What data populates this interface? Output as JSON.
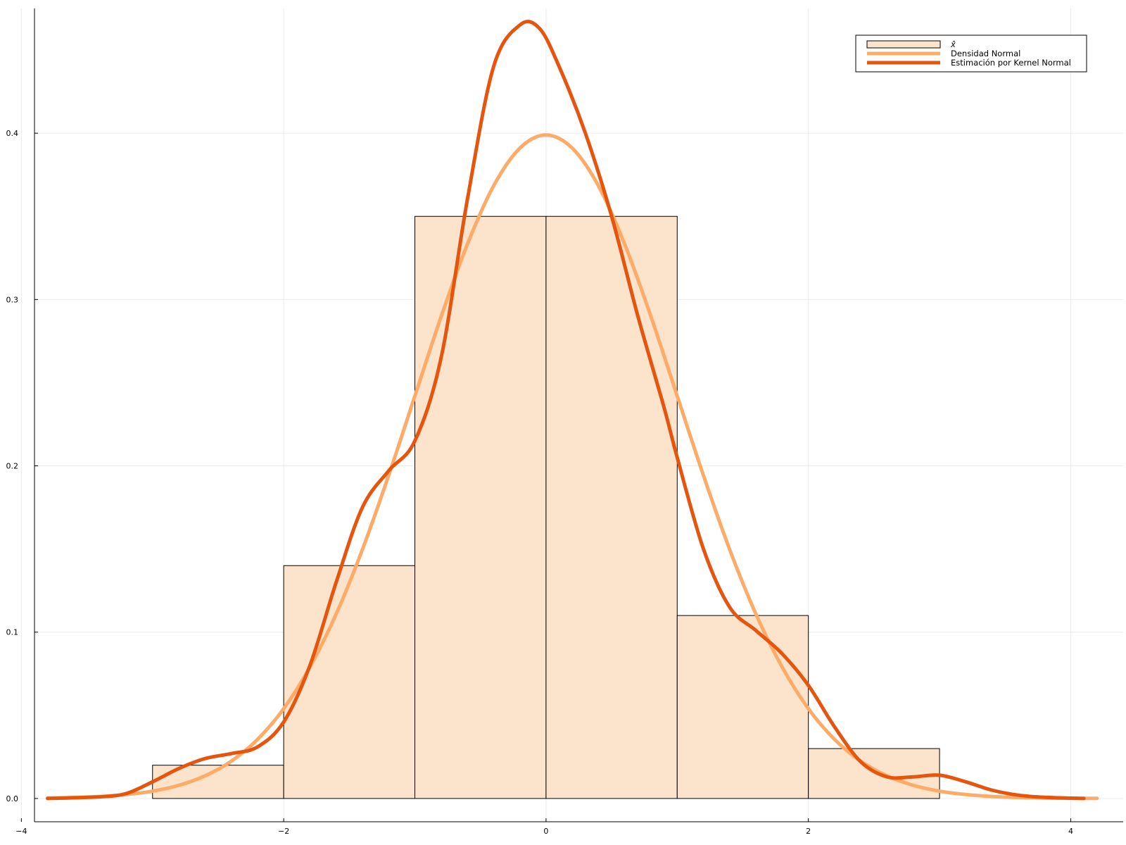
{
  "colors": {
    "hist_fill": "#fce4cc",
    "hist_stroke": "#000000",
    "normal_line": "#fdab67",
    "kde_line": "#e6550d",
    "grid": "#ececec",
    "axis": "#000000",
    "legend_border": "#000000"
  },
  "chart_data": {
    "type": "bar",
    "title": "",
    "xlabel": "",
    "ylabel": "",
    "xlim": [
      -3.9,
      4.4
    ],
    "ylim": [
      -0.014,
      0.475
    ],
    "x_ticks": [
      {
        "value": -4,
        "label": "−4"
      },
      {
        "value": -2,
        "label": "−2"
      },
      {
        "value": 0,
        "label": "0"
      },
      {
        "value": 2,
        "label": "2"
      },
      {
        "value": 4,
        "label": "4"
      }
    ],
    "y_ticks": [
      {
        "value": 0.0,
        "label": "0.0"
      },
      {
        "value": 0.1,
        "label": "0.1"
      },
      {
        "value": 0.2,
        "label": "0.2"
      },
      {
        "value": 0.3,
        "label": "0.3"
      },
      {
        "value": 0.4,
        "label": "0.4"
      }
    ],
    "grid": true,
    "legend_position": "top-right",
    "histogram": {
      "name": "x̂",
      "bins": [
        {
          "x0": -3,
          "x1": -2,
          "value": 0.02
        },
        {
          "x0": -2,
          "x1": -1,
          "value": 0.14
        },
        {
          "x0": -1,
          "x1": 0,
          "value": 0.35
        },
        {
          "x0": 0,
          "x1": 1,
          "value": 0.35
        },
        {
          "x0": 1,
          "x1": 2,
          "value": 0.11
        },
        {
          "x0": 2,
          "x1": 3,
          "value": 0.03
        }
      ]
    },
    "series": [
      {
        "name": "Densidad Normal",
        "type": "line",
        "x": [
          -3.8,
          -3.6,
          -3.4,
          -3.2,
          -3.0,
          -2.8,
          -2.6,
          -2.4,
          -2.2,
          -2.0,
          -1.8,
          -1.6,
          -1.4,
          -1.2,
          -1.0,
          -0.8,
          -0.6,
          -0.4,
          -0.2,
          0.0,
          0.2,
          0.4,
          0.6,
          0.8,
          1.0,
          1.2,
          1.4,
          1.6,
          1.8,
          2.0,
          2.2,
          2.4,
          2.6,
          2.8,
          3.0,
          3.2,
          3.4,
          3.6,
          3.8,
          4.0,
          4.2
        ],
        "y": [
          0.0003,
          0.0006,
          0.0012,
          0.0024,
          0.0044,
          0.0079,
          0.0136,
          0.0224,
          0.0355,
          0.054,
          0.079,
          0.1109,
          0.1497,
          0.1942,
          0.242,
          0.2897,
          0.3332,
          0.3683,
          0.391,
          0.3989,
          0.391,
          0.3683,
          0.3332,
          0.2897,
          0.242,
          0.1942,
          0.1497,
          0.1109,
          0.079,
          0.054,
          0.0355,
          0.0224,
          0.0136,
          0.0079,
          0.0044,
          0.0024,
          0.0012,
          0.0006,
          0.0003,
          0.0001,
          0.0001
        ]
      },
      {
        "name": "Estimación por Kernel Normal",
        "type": "line",
        "x": [
          -3.8,
          -3.4,
          -3.2,
          -3.0,
          -2.8,
          -2.6,
          -2.4,
          -2.2,
          -2.0,
          -1.8,
          -1.6,
          -1.4,
          -1.2,
          -1.0,
          -0.8,
          -0.6,
          -0.4,
          -0.2,
          -0.05,
          0.1,
          0.3,
          0.5,
          0.7,
          0.9,
          1.0,
          1.2,
          1.4,
          1.6,
          1.8,
          2.0,
          2.2,
          2.4,
          2.6,
          2.8,
          3.0,
          3.2,
          3.4,
          3.6,
          3.8,
          4.1
        ],
        "y": [
          0.0,
          0.001,
          0.003,
          0.01,
          0.018,
          0.024,
          0.027,
          0.031,
          0.046,
          0.08,
          0.13,
          0.175,
          0.197,
          0.215,
          0.265,
          0.36,
          0.44,
          0.465,
          0.463,
          0.44,
          0.4,
          0.35,
          0.29,
          0.235,
          0.205,
          0.15,
          0.115,
          0.101,
          0.087,
          0.068,
          0.043,
          0.022,
          0.013,
          0.013,
          0.014,
          0.01,
          0.005,
          0.002,
          0.0007,
          0.0
        ]
      }
    ]
  },
  "legend": {
    "items": [
      {
        "label": "x̂",
        "kind": "box"
      },
      {
        "label": "Densidad Normal",
        "kind": "line-normal"
      },
      {
        "label": "Estimación por Kernel Normal",
        "kind": "line-kde"
      }
    ]
  }
}
